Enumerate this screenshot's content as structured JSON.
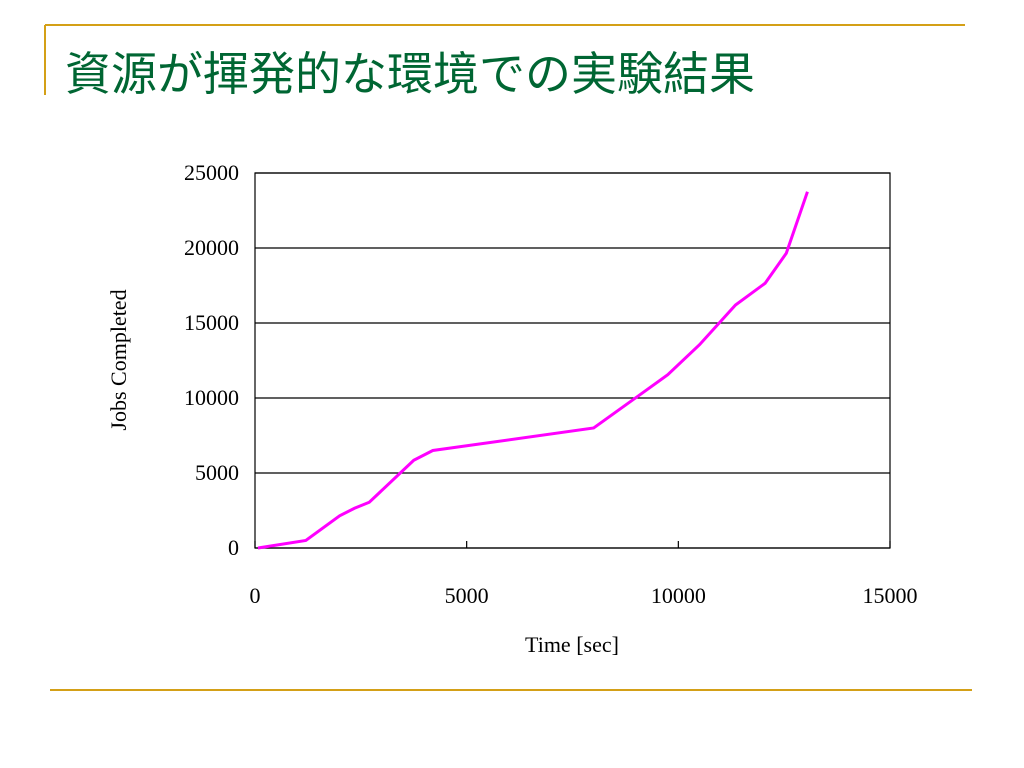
{
  "chart_data": {
    "type": "line",
    "title": "資源が揮発的な環境での実験結果",
    "x_label": "Time [sec]",
    "y_label": "Jobs Completed",
    "x": [
      70,
      1200,
      2000,
      2350,
      2700,
      3750,
      4200,
      8000,
      9750,
      10500,
      11350,
      12050,
      12550,
      13050
    ],
    "series": [
      {
        "color": "#ff00ff",
        "values": [
          0,
          500,
          2150,
          2650,
          3050,
          5850,
          6500,
          8000,
          11550,
          13550,
          16200,
          17650,
          19650,
          23750
        ]
      }
    ],
    "xlim": [
      0,
      15000
    ],
    "xticks": [
      0,
      5000,
      10000,
      15000
    ],
    "ylim": [
      0,
      25000
    ],
    "yticks": [
      0,
      5000,
      10000,
      15000,
      20000,
      25000
    ],
    "grid": true
  }
}
